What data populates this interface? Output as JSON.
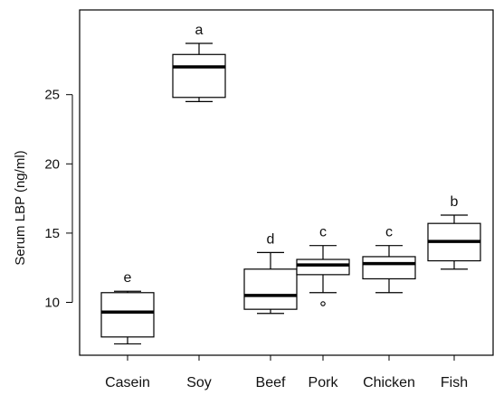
{
  "chart_data": {
    "type": "boxplot",
    "title": "",
    "xlabel": "",
    "ylabel": "Serum LBP (ng/ml)",
    "ylim": [
      7,
      30
    ],
    "y_ticks": [
      10,
      15,
      20,
      25
    ],
    "categories": [
      "Casein",
      "Soy",
      "Beef",
      "Pork",
      "Chicken",
      "Fish"
    ],
    "boxes": [
      {
        "category": "Casein",
        "whisker_low": 7.0,
        "q1": 7.5,
        "median": 9.3,
        "q3": 10.7,
        "whisker_high": 10.8,
        "outliers": [],
        "letter": "e"
      },
      {
        "category": "Soy",
        "whisker_low": 24.5,
        "q1": 24.8,
        "median": 27.0,
        "q3": 27.9,
        "whisker_high": 28.7,
        "outliers": [],
        "letter": "a"
      },
      {
        "category": "Beef",
        "whisker_low": 9.2,
        "q1": 9.5,
        "median": 10.5,
        "q3": 12.4,
        "whisker_high": 13.6,
        "outliers": [],
        "letter": "d"
      },
      {
        "category": "Pork",
        "whisker_low": 10.7,
        "q1": 12.0,
        "median": 12.7,
        "q3": 13.1,
        "whisker_high": 14.1,
        "outliers": [
          9.9
        ],
        "letter": "c"
      },
      {
        "category": "Chicken",
        "whisker_low": 10.7,
        "q1": 11.7,
        "median": 12.8,
        "q3": 13.3,
        "whisker_high": 14.1,
        "outliers": [],
        "letter": "c"
      },
      {
        "category": "Fish",
        "whisker_low": 12.4,
        "q1": 13.0,
        "median": 14.4,
        "q3": 15.7,
        "whisker_high": 16.3,
        "outliers": [],
        "letter": "b"
      }
    ],
    "grid": false,
    "legend": "none"
  }
}
